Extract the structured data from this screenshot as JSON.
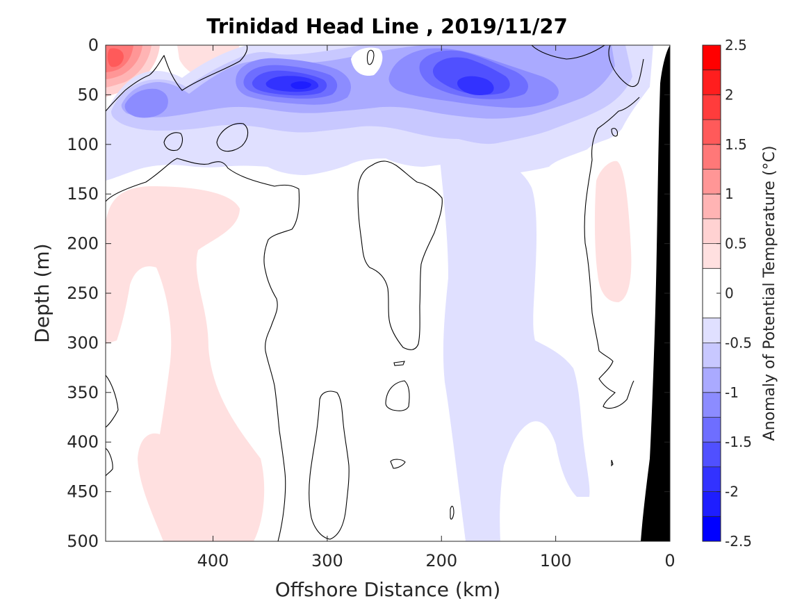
{
  "chart_data": {
    "type": "heatmap",
    "title": "Trinidad Head Line , 2019/11/27",
    "xlabel": "Offshore Distance (km)",
    "ylabel": "Depth (m)",
    "colorbar_label": "Anomaly of Potential Temperature (°C)",
    "x_range_km": [
      494,
      0
    ],
    "x_reversed": true,
    "y_range_m": [
      0,
      500
    ],
    "y_reversed": true,
    "x_ticks": [
      "400",
      "300",
      "200",
      "100",
      "0"
    ],
    "y_ticks": [
      "0",
      "50",
      "100",
      "150",
      "200",
      "250",
      "300",
      "350",
      "400",
      "450",
      "500"
    ],
    "colorbar": {
      "range": [
        -2.5,
        2.5
      ],
      "tick_labels": [
        "2.5",
        "2",
        "1.5",
        "1",
        "0.5",
        "0",
        "-0.5",
        "-1",
        "-1.5",
        "-2",
        "-2.5"
      ],
      "levels": [
        {
          "from": 2.25,
          "to": 2.5,
          "color": "#ff0000"
        },
        {
          "from": 2.0,
          "to": 2.25,
          "color": "#ff1e1e"
        },
        {
          "from": 1.75,
          "to": 2.0,
          "color": "#ff3c3c"
        },
        {
          "from": 1.5,
          "to": 1.75,
          "color": "#ff5a5a"
        },
        {
          "from": 1.25,
          "to": 1.5,
          "color": "#ff7878"
        },
        {
          "from": 1.0,
          "to": 1.25,
          "color": "#ff9696"
        },
        {
          "from": 0.75,
          "to": 1.0,
          "color": "#ffb4b4"
        },
        {
          "from": 0.5,
          "to": 0.75,
          "color": "#ffd2d2"
        },
        {
          "from": 0.25,
          "to": 0.5,
          "color": "#ffe0e0"
        },
        {
          "from": -0.25,
          "to": 0.25,
          "color": "#ffffff"
        },
        {
          "from": -0.5,
          "to": -0.25,
          "color": "#e0e0ff"
        },
        {
          "from": -0.75,
          "to": -0.5,
          "color": "#c8c8ff"
        },
        {
          "from": -1.0,
          "to": -0.75,
          "color": "#aaaaff"
        },
        {
          "from": -1.25,
          "to": -1.0,
          "color": "#8c8cff"
        },
        {
          "from": -1.5,
          "to": -1.25,
          "color": "#6e6eff"
        },
        {
          "from": -1.75,
          "to": -1.5,
          "color": "#5050ff"
        },
        {
          "from": -2.0,
          "to": -1.75,
          "color": "#3232ff"
        },
        {
          "from": -2.25,
          "to": -2.0,
          "color": "#1e1eff"
        },
        {
          "from": -2.5,
          "to": -2.25,
          "color": "#0000ff"
        }
      ]
    },
    "features": [
      {
        "name": "warm-core-nearshore-surface",
        "x_km": 480,
        "depth_m": 20,
        "anomaly_c": 2.0
      },
      {
        "name": "cold-core-300km",
        "x_km": 320,
        "depth_m": 42,
        "anomaly_c": -2.0
      },
      {
        "name": "cold-core-175km",
        "x_km": 175,
        "depth_m": 45,
        "anomaly_c": -1.75
      },
      {
        "name": "cold-patch-450km",
        "x_km": 455,
        "depth_m": 62,
        "anomaly_c": -1.0
      },
      {
        "name": "warm-tongue-offshore-deep",
        "x_km": 430,
        "depth_m": 300,
        "anomaly_c": 0.35
      },
      {
        "name": "warm-patch-coastal",
        "x_km": 25,
        "depth_m": 180,
        "anomaly_c": 0.35
      },
      {
        "name": "cool-column-160km",
        "x_km": 170,
        "depth_m": 320,
        "anomaly_c": -0.35
      }
    ],
    "bathymetry_color": "#000000",
    "grid": false
  }
}
